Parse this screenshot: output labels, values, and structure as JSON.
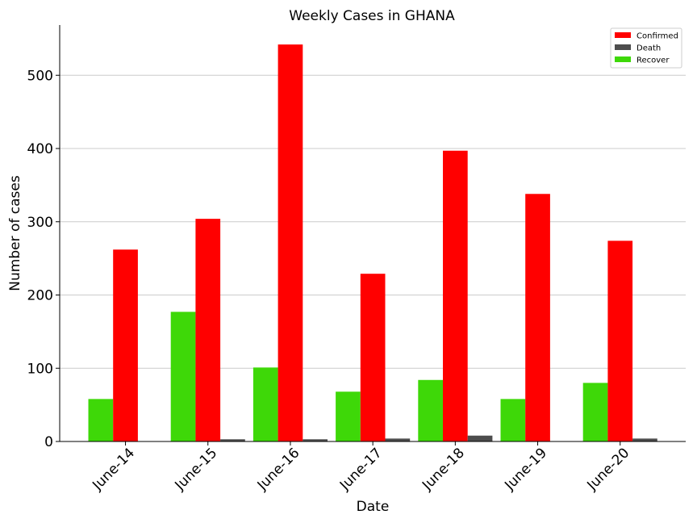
{
  "chart_data": {
    "type": "bar",
    "title": "Weekly Cases in GHANA",
    "xlabel": "Date",
    "ylabel": "Number of cases",
    "categories": [
      "June-14",
      "June-15",
      "June-16",
      "June-17",
      "June-18",
      "June-19",
      "June-20"
    ],
    "series": [
      {
        "name": "Recover",
        "color": "#3ed808",
        "values": [
          58,
          177,
          101,
          68,
          84,
          58,
          80
        ]
      },
      {
        "name": "Confirmed",
        "color": "#ff0000",
        "values": [
          262,
          304,
          542,
          229,
          397,
          338,
          274
        ]
      },
      {
        "name": "Death",
        "color": "#4d4d4d",
        "values": [
          0,
          3,
          3,
          4,
          8,
          0,
          4
        ]
      }
    ],
    "legend_order": [
      "Confirmed",
      "Death",
      "Recover"
    ],
    "yticks": [
      0,
      100,
      200,
      300,
      400,
      500
    ],
    "ylim": [
      0,
      570
    ],
    "grid": "horizontal",
    "legend_position": "top-right"
  }
}
